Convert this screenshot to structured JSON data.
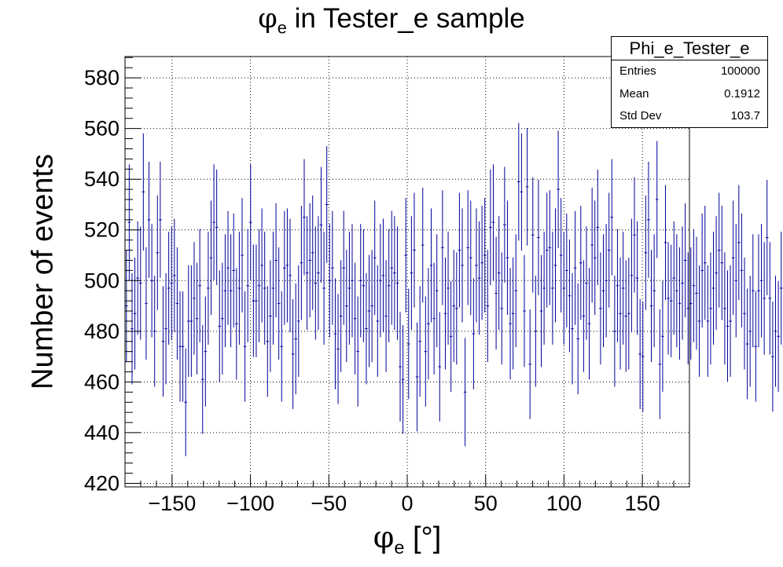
{
  "title": {
    "symbol": "φ",
    "sub": "e",
    "rest": " in Tester_e sample"
  },
  "xlabel": {
    "symbol": "φ",
    "sub": "e",
    "rest": " [°]"
  },
  "ylabel": "Number of events",
  "stats": {
    "name": "Phi_e_Tester_e",
    "rows": [
      {
        "key": "Entries",
        "value": "100000"
      },
      {
        "key": "Mean",
        "value": "0.1912"
      },
      {
        "key": "Std Dev",
        "value": "103.7"
      }
    ]
  },
  "colors": {
    "marker": "#000099",
    "grid": "#000000"
  },
  "chart_data": {
    "type": "scatter",
    "style": "histogram with error bars",
    "xlim": [
      -180,
      180
    ],
    "ylim": [
      418.6,
      588.4
    ],
    "xticks": [
      -150,
      -100,
      -50,
      0,
      50,
      100,
      150
    ],
    "xtick_labels": [
      "−150",
      "−100",
      "−50",
      "0",
      "50",
      "100",
      "150"
    ],
    "yticks": [
      420,
      440,
      460,
      480,
      500,
      520,
      540,
      560,
      580
    ],
    "grid": true,
    "bin_width": 1.8,
    "values": [
      490,
      523,
      481,
      487,
      501,
      499,
      535,
      491,
      524,
      500,
      480,
      511,
      524,
      476,
      481,
      497,
      499,
      502,
      491,
      474,
      474,
      452,
      484,
      484,
      493,
      485,
      498,
      461,
      472,
      497,
      509,
      523,
      521,
      482,
      485,
      496,
      505,
      496,
      504,
      483,
      497,
      510,
      474,
      498,
      523,
      492,
      492,
      498,
      506,
      497,
      476,
      486,
      497,
      508,
      491,
      474,
      505,
      506,
      502,
      471,
      477,
      484,
      507,
      525,
      503,
      508,
      511,
      499,
      503,
      522,
      497,
      530,
      500,
      505,
      479,
      473,
      486,
      505,
      490,
      497,
      500,
      485,
      472,
      500,
      498,
      481,
      488,
      490,
      509,
      484,
      500,
      502,
      486,
      498,
      505,
      503,
      499,
      466,
      461,
      510,
      475,
      503,
      512,
      462,
      476,
      514,
      472,
      483,
      506,
      485,
      496,
      466,
      513,
      487,
      497,
      478,
      490,
      489,
      512,
      506,
      456,
      513,
      509,
      479,
      506,
      501,
      507,
      510,
      490,
      521,
      523,
      495,
      503,
      489,
      522,
      509,
      483,
      487,
      496,
      539,
      535,
      488,
      537,
      467,
      518,
      480,
      517,
      488,
      497,
      512,
      513,
      497,
      506,
      536,
      510,
      497,
      504,
      494,
      481,
      505,
      477,
      507,
      486,
      499,
      483,
      514,
      509,
      521,
      489,
      496,
      500,
      512,
      525,
      480,
      498,
      487,
      497,
      486,
      487,
      502,
      518,
      501,
      471,
      470,
      511,
      524,
      490,
      496,
      532,
      467,
      478,
      515,
      493,
      492,
      501,
      496,
      491,
      499,
      508,
      489,
      491,
      498,
      495,
      484,
      504,
      507,
      484,
      489,
      497,
      503,
      512,
      507,
      489,
      482,
      484,
      509,
      500,
      515,
      504,
      487,
      475,
      480,
      496,
      474,
      496,
      500,
      493,
      517,
      493,
      470,
      480,
      478,
      497,
      474,
      479,
      491,
      494,
      506,
      507,
      502,
      496,
      476,
      510,
      515,
      500,
      491,
      508,
      510,
      510,
      510,
      506,
      497,
      473,
      518,
      499,
      470,
      474,
      490,
      485,
      476,
      481,
      517,
      499,
      484,
      519,
      526,
      503,
      493,
      477,
      496,
      491,
      482,
      488,
      500,
      477,
      491,
      503,
      520,
      471,
      463,
      485,
      496,
      480,
      468,
      500,
      474,
      493,
      483,
      475,
      489,
      481,
      466,
      501,
      530,
      511,
      497,
      486,
      473,
      457,
      475,
      494,
      483,
      482,
      501,
      515,
      491,
      520,
      499,
      488,
      501,
      477,
      475,
      494,
      451,
      499,
      484,
      475,
      485,
      501,
      492,
      484,
      488,
      489,
      518,
      503,
      511,
      493,
      479,
      514,
      472,
      496,
      501,
      501,
      508,
      469,
      488,
      503,
      473,
      525,
      500,
      503,
      474,
      493,
      511,
      499,
      520,
      503,
      493,
      497,
      483
    ]
  }
}
